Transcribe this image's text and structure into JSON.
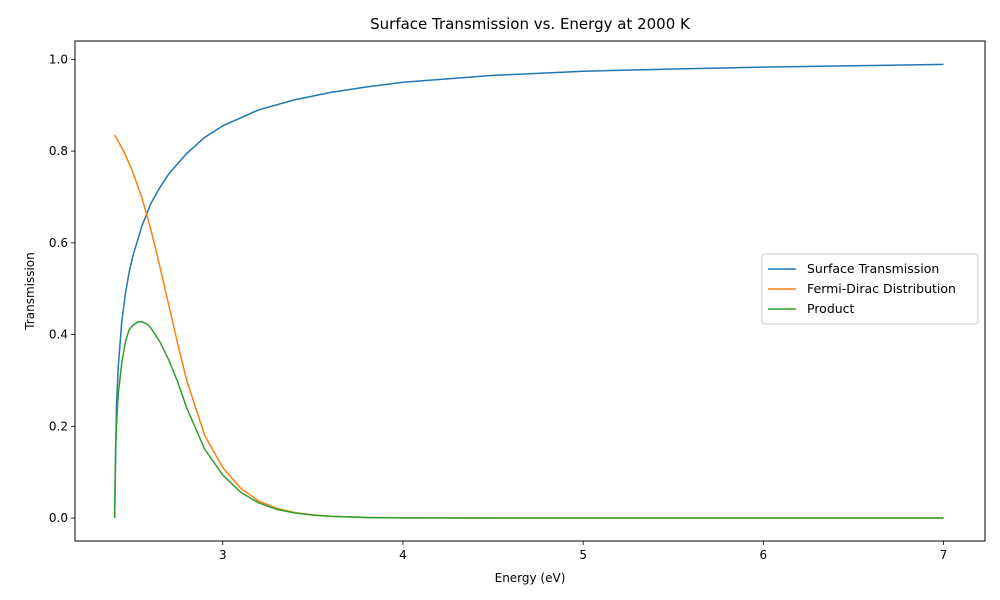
{
  "chart_data": {
    "type": "line",
    "title": "Surface Transmission vs. Energy at 2000 K",
    "xlabel": "Energy (eV)",
    "ylabel": "Transmission",
    "xlim": [
      2.18,
      7.23
    ],
    "ylim": [
      -0.05,
      1.04
    ],
    "xticks": [
      3,
      4,
      5,
      6,
      7
    ],
    "yticks": [
      0.0,
      0.2,
      0.4,
      0.6,
      0.8,
      1.0
    ],
    "grid": false,
    "legend_position": "center-right",
    "series": [
      {
        "name": "Surface Transmission",
        "color": "#1f77b4",
        "x": [
          2.4,
          2.41,
          2.42,
          2.44,
          2.46,
          2.48,
          2.5,
          2.55,
          2.6,
          2.65,
          2.7,
          2.8,
          2.9,
          3.0,
          3.2,
          3.4,
          3.6,
          3.8,
          4.0,
          4.5,
          5.0,
          5.5,
          6.0,
          6.5,
          7.0
        ],
        "y": [
          0.0,
          0.24,
          0.33,
          0.43,
          0.49,
          0.535,
          0.57,
          0.635,
          0.685,
          0.72,
          0.75,
          0.795,
          0.83,
          0.855,
          0.89,
          0.912,
          0.928,
          0.94,
          0.95,
          0.965,
          0.974,
          0.979,
          0.983,
          0.986,
          0.989
        ]
      },
      {
        "name": "Fermi-Dirac Distribution",
        "color": "#ff7f0e",
        "x": [
          2.4,
          2.45,
          2.5,
          2.55,
          2.6,
          2.65,
          2.7,
          2.75,
          2.8,
          2.9,
          3.0,
          3.1,
          3.2,
          3.3,
          3.4,
          3.5,
          3.6,
          3.8,
          4.0,
          4.5,
          5.0,
          6.0,
          7.0
        ],
        "y": [
          0.835,
          0.8,
          0.755,
          0.7,
          0.63,
          0.55,
          0.465,
          0.38,
          0.3,
          0.18,
          0.11,
          0.065,
          0.037,
          0.021,
          0.012,
          0.007,
          0.004,
          0.0012,
          0.0004,
          0.0,
          0.0,
          0.0,
          0.0
        ]
      },
      {
        "name": "Product",
        "color": "#2ca02c",
        "x": [
          2.4,
          2.405,
          2.41,
          2.42,
          2.44,
          2.46,
          2.48,
          2.5,
          2.53,
          2.55,
          2.58,
          2.6,
          2.65,
          2.7,
          2.75,
          2.8,
          2.9,
          3.0,
          3.1,
          3.2,
          3.3,
          3.4,
          3.5,
          3.6,
          3.8,
          4.0,
          4.5,
          5.0,
          6.0,
          7.0
        ],
        "y": [
          0.0,
          0.15,
          0.2,
          0.27,
          0.34,
          0.385,
          0.41,
          0.42,
          0.428,
          0.428,
          0.423,
          0.415,
          0.385,
          0.345,
          0.297,
          0.24,
          0.15,
          0.094,
          0.056,
          0.033,
          0.019,
          0.011,
          0.0065,
          0.0037,
          0.0011,
          0.0004,
          0.0,
          0.0,
          0.0,
          0.0
        ]
      }
    ]
  }
}
